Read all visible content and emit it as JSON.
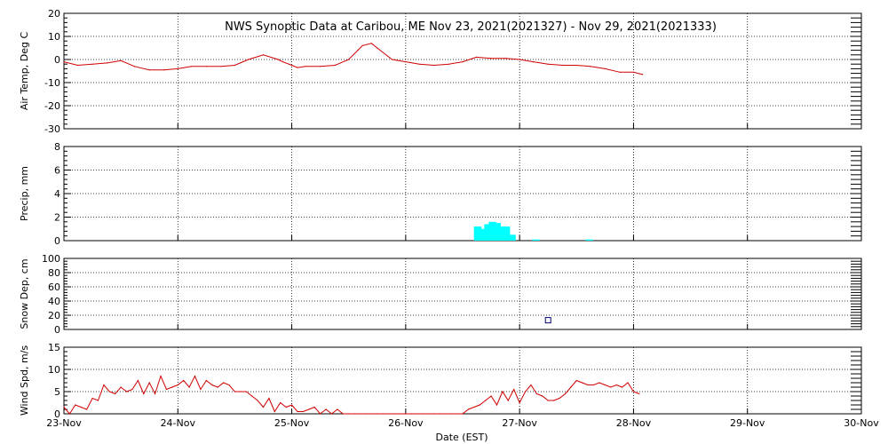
{
  "title": "NWS Synoptic Data at Caribou, ME   Nov 23, 2021(2021327) - Nov 29, 2021(2021333)",
  "xlabel": "Date (EST)",
  "colors": {
    "line": "#d00000",
    "precip": "#00ffff",
    "snow": "#000080",
    "frame": "#000000",
    "grid": "#000000"
  },
  "chart_data": [
    {
      "type": "line",
      "panel": "air-temp",
      "ylabel": "Air Temp, Deg C",
      "ylim": [
        -30,
        20
      ],
      "yticks": [
        20,
        10,
        0,
        -10,
        -20,
        -30
      ],
      "xlim": [
        0,
        7
      ],
      "x_tick_labels": [
        "23-Nov",
        "24-Nov",
        "25-Nov",
        "26-Nov",
        "27-Nov",
        "28-Nov",
        "29-Nov",
        "30-Nov"
      ],
      "series": [
        {
          "x": [
            0,
            0.12,
            0.25,
            0.38,
            0.5,
            0.62,
            0.75,
            0.88,
            1.0,
            1.12,
            1.25,
            1.38,
            1.5,
            1.62,
            1.75,
            1.88,
            1.92,
            2.0,
            2.05,
            2.12,
            2.25,
            2.38,
            2.5,
            2.58,
            2.62,
            2.7,
            2.75,
            2.88,
            3.0,
            3.12,
            3.25,
            3.38,
            3.5,
            3.62,
            3.75,
            3.88,
            4.0,
            4.12,
            4.25,
            4.38,
            4.5,
            4.62,
            4.75,
            4.88,
            5.0,
            5.08
          ],
          "y": [
            -1,
            -2.5,
            -2,
            -1.5,
            -0.5,
            -3,
            -4.5,
            -4.5,
            -4,
            -3,
            -3,
            -3,
            -2.5,
            0,
            2,
            0,
            -1,
            -2.5,
            -3.5,
            -3,
            -3,
            -2.5,
            0,
            4,
            6,
            7,
            5,
            0,
            -1,
            -2,
            -2.5,
            -2,
            -1,
            1,
            0.5,
            0.5,
            0,
            -1,
            -2,
            -2.5,
            -2.5,
            -3,
            -4,
            -5.5,
            -5.5,
            -6.5
          ]
        }
      ],
      "grid": true
    },
    {
      "type": "bar",
      "panel": "precip",
      "ylabel": "Precip, mm",
      "ylim": [
        0,
        8
      ],
      "yticks": [
        8,
        6,
        4,
        2,
        0
      ],
      "xlim": [
        0,
        7
      ],
      "series": [
        {
          "x": [
            3.62,
            3.67,
            3.71,
            3.75,
            3.79,
            3.83,
            3.87,
            3.92,
            4.13,
            4.6
          ],
          "values": [
            1.2,
            1.0,
            1.4,
            1.6,
            1.5,
            1.2,
            1.2,
            0.5,
            0.1,
            0.1
          ]
        }
      ],
      "grid": true
    },
    {
      "type": "scatter",
      "panel": "snow-depth",
      "ylabel": "Snow Dep, cm",
      "ylim": [
        0,
        100
      ],
      "yticks": [
        100,
        80,
        60,
        40,
        20,
        0
      ],
      "xlim": [
        0,
        7
      ],
      "series": [
        {
          "x": [
            4.25
          ],
          "y": [
            13
          ]
        }
      ],
      "grid": true
    },
    {
      "type": "line",
      "panel": "wind-speed",
      "ylabel": "Wind Spd, m/s",
      "ylim": [
        0,
        15
      ],
      "yticks": [
        15,
        10,
        5,
        0
      ],
      "xlim": [
        0,
        7
      ],
      "series": [
        {
          "x": [
            0,
            0.05,
            0.1,
            0.15,
            0.2,
            0.25,
            0.3,
            0.35,
            0.4,
            0.45,
            0.5,
            0.55,
            0.6,
            0.65,
            0.7,
            0.75,
            0.8,
            0.85,
            0.9,
            0.95,
            1.0,
            1.05,
            1.1,
            1.15,
            1.2,
            1.25,
            1.3,
            1.35,
            1.4,
            1.45,
            1.5,
            1.55,
            1.6,
            1.65,
            1.7,
            1.75,
            1.8,
            1.85,
            1.9,
            1.95,
            2.0,
            2.05,
            2.1,
            2.15,
            2.2,
            2.25,
            2.3,
            2.35,
            2.4,
            2.45,
            2.5,
            2.55,
            2.6,
            2.65,
            2.7,
            2.75,
            2.8,
            2.85,
            2.9,
            2.95,
            3.0,
            3.05,
            3.1,
            3.15,
            3.2,
            3.25,
            3.3,
            3.35,
            3.4,
            3.45,
            3.5,
            3.55,
            3.6,
            3.65,
            3.7,
            3.75,
            3.8,
            3.85,
            3.9,
            3.95,
            4.0,
            4.05,
            4.1,
            4.15,
            4.2,
            4.25,
            4.3,
            4.35,
            4.4,
            4.45,
            4.5,
            4.55,
            4.6,
            4.65,
            4.7,
            4.75,
            4.8,
            4.85,
            4.9,
            4.95,
            5.0,
            5.05
          ],
          "values": [
            1.5,
            0,
            2,
            1.5,
            1,
            3.5,
            3,
            6.5,
            5,
            4.5,
            6,
            5,
            5.5,
            7.5,
            4.5,
            7,
            4.5,
            8.5,
            5.5,
            6,
            6.5,
            7.5,
            6,
            8.5,
            5.5,
            7.5,
            6.5,
            6,
            7,
            6.5,
            5,
            5,
            5,
            4,
            3,
            1.5,
            3.5,
            0.5,
            2.5,
            1.5,
            2,
            0.5,
            0.5,
            1,
            1.5,
            0,
            1,
            0,
            1,
            0,
            0,
            0,
            0,
            0,
            0,
            0,
            0,
            0,
            0,
            0,
            0,
            0,
            0,
            0,
            0,
            0,
            0,
            0,
            0,
            0,
            0,
            1,
            1.5,
            2,
            3,
            4,
            2,
            5,
            3,
            5.5,
            2.5,
            5,
            6.5,
            4.5,
            4,
            3,
            3,
            3.5,
            4.5,
            6,
            7.5,
            7,
            6.5,
            6.5,
            7,
            6.5,
            6,
            6.5,
            6,
            7,
            5,
            4.5
          ]
        }
      ],
      "grid": true
    }
  ]
}
